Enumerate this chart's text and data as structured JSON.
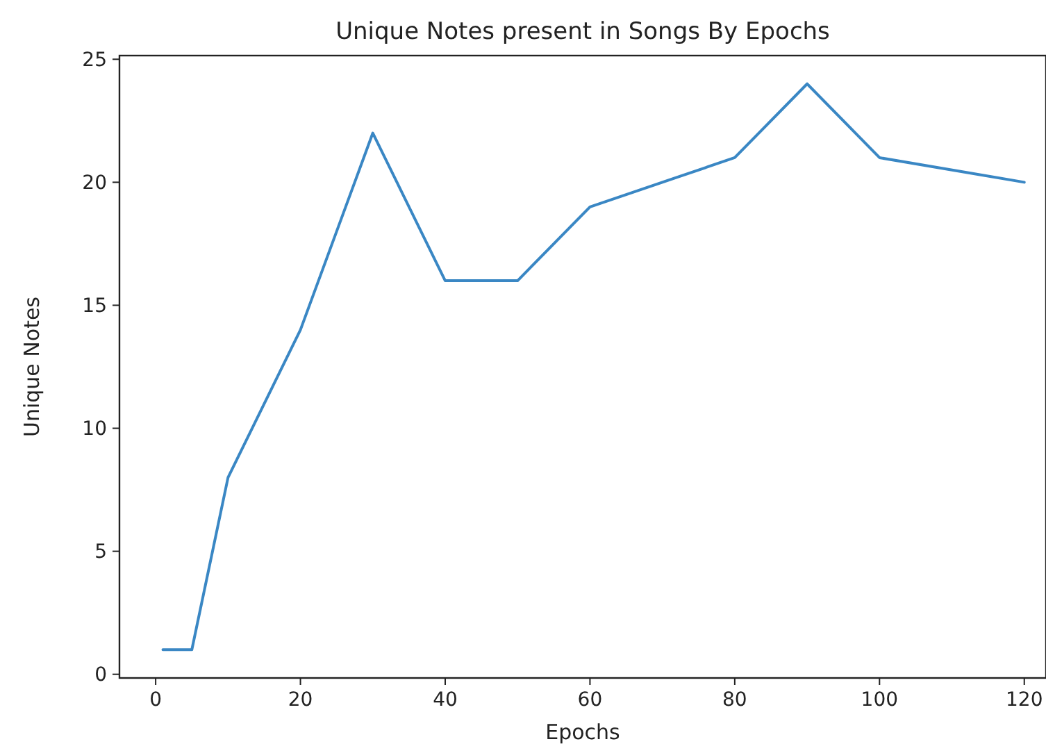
{
  "chart_data": {
    "type": "line",
    "title": "Unique Notes present in Songs By Epochs",
    "xlabel": "Epochs",
    "ylabel": "Unique Notes",
    "x": [
      1,
      5,
      10,
      20,
      30,
      40,
      50,
      60,
      80,
      90,
      100,
      120
    ],
    "series": [
      {
        "color": "#3a87c4",
        "values": [
          1,
          1,
          8,
          14,
          22,
          16,
          16,
          19,
          21,
          24,
          21,
          20
        ]
      }
    ],
    "xlim": [
      -5,
      123
    ],
    "xticks": [
      0,
      20,
      40,
      60,
      80,
      100,
      120
    ],
    "ylim": [
      -0.15,
      25.15
    ],
    "yticks": [
      0,
      5,
      10,
      15,
      20,
      25
    ],
    "grid": false,
    "marker": "none",
    "line_style": "solid"
  }
}
